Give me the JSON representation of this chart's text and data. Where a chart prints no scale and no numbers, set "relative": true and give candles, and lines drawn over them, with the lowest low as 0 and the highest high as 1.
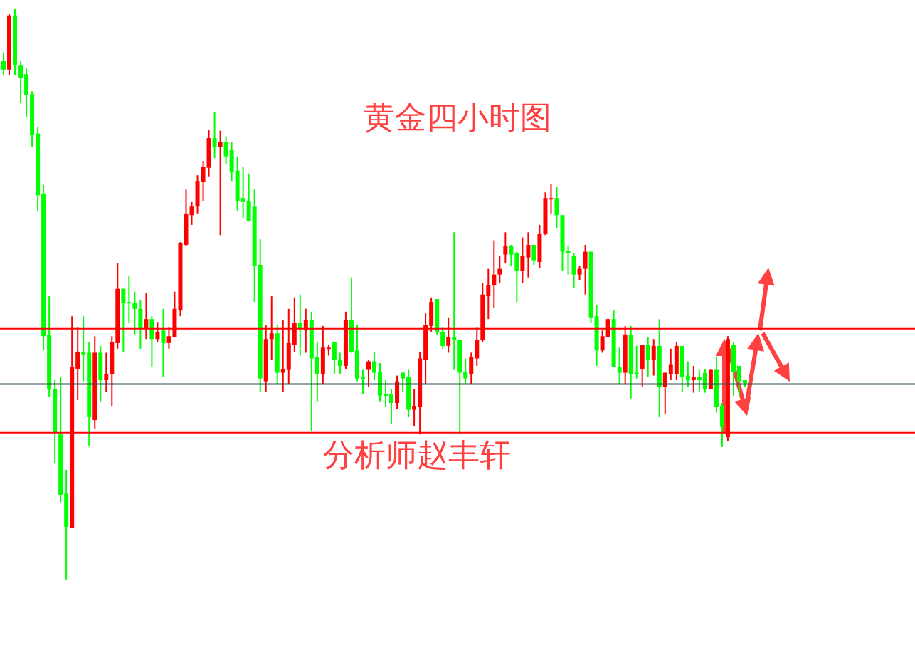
{
  "chart_data": {
    "type": "candlestick",
    "title": "黄金四小时图",
    "annotations": [
      "分析师赵丰轩"
    ],
    "relative": true,
    "categories": [
      null,
      null,
      null,
      null,
      null,
      null,
      null,
      null,
      null,
      null,
      null,
      null,
      null,
      null,
      null,
      null,
      null,
      null,
      null,
      null,
      null,
      null,
      null,
      null,
      null,
      null,
      null,
      null,
      null,
      null,
      null,
      null,
      null,
      null,
      null,
      null,
      null,
      null,
      null,
      null,
      null,
      null,
      null,
      null,
      null,
      null,
      null,
      null,
      null,
      null,
      null,
      null,
      null,
      null,
      null,
      null,
      null,
      null,
      null,
      null,
      null,
      null,
      null,
      null,
      null,
      null,
      null,
      null,
      null,
      null,
      null,
      null,
      null,
      null,
      null,
      null,
      null,
      null,
      null,
      null,
      null,
      null,
      null,
      null,
      null,
      null,
      null,
      null,
      null,
      null,
      null,
      null,
      null,
      null,
      null,
      null,
      null,
      null,
      null,
      null,
      null,
      null,
      null,
      null,
      null,
      null,
      null,
      null,
      null,
      null,
      null,
      null,
      null,
      null,
      null,
      null,
      null,
      null,
      null,
      null,
      null,
      null,
      null,
      null,
      null,
      null,
      null,
      null,
      null,
      null,
      null
    ],
    "colors": [
      "#00ff00",
      "#ff0000",
      "#00ff00",
      "#00ff00",
      "#00ff00",
      "#00ff00",
      "#00ff00",
      "#00ff00",
      "#00ff00",
      "#00ff00",
      "#00ff00",
      "#00ff00",
      "#ff0000",
      "#ff0000",
      "#00ff00",
      "#00ff00",
      "#ff0000",
      "#00ff00",
      "#ff0000",
      "#ff0000",
      "#ff0000",
      "#00ff00",
      "#00ff00",
      "#00ff00",
      "#00ff00",
      "#ff0000",
      "#00ff00",
      "#ff0000",
      "#00ff00",
      "#ff0000",
      "#ff0000",
      "#ff0000",
      "#ff0000",
      "#ff0000",
      "#ff0000",
      "#ff0000",
      "#ff0000",
      "#00ff00",
      "#ff0000",
      "#00ff00",
      "#00ff00",
      "#00ff00",
      "#00ff00",
      "#00ff00",
      "#00ff00",
      "#00ff00",
      "#ff0000",
      "#ff0000",
      "#00ff00",
      "#ff0000",
      "#ff0000",
      "#ff0000",
      "#00ff00",
      "#ff0000",
      "#00ff00",
      "#00ff00",
      "#ff0000",
      "#ff0000",
      "#00ff00",
      "#00ff00",
      "#ff0000",
      "#00ff00",
      "#00ff00",
      "#00ff00",
      "#ff0000",
      "#00ff00",
      "#00ff00",
      "#00ff00",
      "#00ff00",
      "#ff0000",
      "#00ff00",
      "#00ff00",
      "#ff0000",
      "#ff0000",
      "#ff0000",
      "#ff0000",
      "#00ff00",
      "#00ff00",
      "#ff0000",
      "#00ff00",
      "#00ff00",
      "#00ff00",
      "#ff0000",
      "#ff0000",
      "#ff0000",
      "#ff0000",
      "#ff0000",
      "#ff0000",
      "#ff0000",
      "#00ff00",
      "#00ff00",
      "#ff0000",
      "#ff0000",
      "#00ff00",
      "#ff0000",
      "#ff0000",
      "#ff0000",
      "#00ff00",
      "#00ff00",
      "#00ff00",
      "#00ff00",
      "#ff0000",
      "#ff0000",
      "#00ff00",
      "#00ff00",
      "#ff0000",
      "#ff0000",
      "#00ff00",
      "#00ff00",
      "#ff0000",
      "#00ff00",
      "#00ff00",
      "#ff0000",
      "#00ff00",
      "#ff0000",
      "#00ff00",
      "#ff0000",
      "#ff0000",
      "#ff0000",
      "#00ff00",
      "#00ff00",
      "#ff0000",
      "#00ff00",
      "#00ff00",
      "#ff0000",
      "#00ff00",
      "#00ff00",
      "#ff0000",
      "#00ff00",
      "#00ff00",
      "#00ff00"
    ],
    "ohlc": [
      [
        0.908,
        0.923,
        0.883,
        0.893
      ],
      [
        0.893,
        0.99,
        0.883,
        0.988
      ],
      [
        0.988,
        1,
        0.883,
        0.9
      ],
      [
        0.9,
        0.908,
        0.835,
        0.878
      ],
      [
        0.885,
        0.895,
        0.81,
        0.848
      ],
      [
        0.85,
        0.855,
        0.758,
        0.778
      ],
      [
        0.781,
        0.793,
        0.646,
        0.673
      ],
      [
        0.676,
        0.691,
        0.401,
        0.426
      ],
      [
        0.429,
        0.496,
        0.319,
        0.334
      ],
      [
        0.334,
        0.349,
        0.204,
        0.257
      ],
      [
        0.254,
        0.354,
        0.135,
        0.147
      ],
      [
        0.15,
        0.192,
        0,
        0.092
      ],
      [
        0.09,
        0.461,
        0.09,
        0.372
      ],
      [
        0.369,
        0.441,
        0.314,
        0.399
      ],
      [
        0.399,
        0.461,
        0.347,
        0.394
      ],
      [
        0.397,
        0.416,
        0.234,
        0.284
      ],
      [
        0.279,
        0.426,
        0.264,
        0.397
      ],
      [
        0.397,
        0.409,
        0.312,
        0.349
      ],
      [
        0.349,
        0.397,
        0.329,
        0.359
      ],
      [
        0.359,
        0.426,
        0.304,
        0.416
      ],
      [
        0.414,
        0.554,
        0.404,
        0.509
      ],
      [
        0.509,
        0.509,
        0.399,
        0.484
      ],
      [
        0.486,
        0.531,
        0.449,
        0.484
      ],
      [
        0.484,
        0.504,
        0.429,
        0.474
      ],
      [
        0.474,
        0.489,
        0.404,
        0.439
      ],
      [
        0.439,
        0.501,
        0.421,
        0.456
      ],
      [
        0.456,
        0.461,
        0.372,
        0.421
      ],
      [
        0.421,
        0.451,
        0.416,
        0.434
      ],
      [
        0.436,
        0.474,
        0.354,
        0.414
      ],
      [
        0.414,
        0.441,
        0.404,
        0.426
      ],
      [
        0.424,
        0.504,
        0.424,
        0.474
      ],
      [
        0.471,
        0.591,
        0.461,
        0.589
      ],
      [
        0.586,
        0.683,
        0.584,
        0.641
      ],
      [
        0.638,
        0.661,
        0.621,
        0.653
      ],
      [
        0.653,
        0.708,
        0.641,
        0.698
      ],
      [
        0.696,
        0.733,
        0.663,
        0.723
      ],
      [
        0.721,
        0.788,
        0.706,
        0.773
      ],
      [
        0.773,
        0.818,
        0.738,
        0.758
      ],
      [
        0.758,
        0.786,
        0.603,
        0.766
      ],
      [
        0.766,
        0.776,
        0.728,
        0.741
      ],
      [
        0.753,
        0.766,
        0.698,
        0.713
      ],
      [
        0.716,
        0.741,
        0.646,
        0.663
      ],
      [
        0.668,
        0.723,
        0.633,
        0.661
      ],
      [
        0.663,
        0.711,
        0.628,
        0.628
      ],
      [
        0.653,
        0.683,
        0.486,
        0.549
      ],
      [
        0.551,
        0.596,
        0.329,
        0.352
      ],
      [
        0.347,
        0.446,
        0.329,
        0.421
      ],
      [
        0.421,
        0.496,
        0.384,
        0.431
      ],
      [
        0.431,
        0.446,
        0.342,
        0.362
      ],
      [
        0.362,
        0.454,
        0.329,
        0.369
      ],
      [
        0.367,
        0.474,
        0.342,
        0.414
      ],
      [
        0.411,
        0.494,
        0.399,
        0.449
      ],
      [
        0.449,
        0.499,
        0.392,
        0.439
      ],
      [
        0.436,
        0.474,
        0.397,
        0.454
      ],
      [
        0.454,
        0.469,
        0.259,
        0.387
      ],
      [
        0.389,
        0.416,
        0.312,
        0.359
      ],
      [
        0.359,
        0.444,
        0.342,
        0.406
      ],
      [
        0.404,
        0.411,
        0.392,
        0.406
      ],
      [
        0.416,
        0.416,
        0.359,
        0.384
      ],
      [
        0.384,
        0.397,
        0.359,
        0.374
      ],
      [
        0.374,
        0.469,
        0.369,
        0.454
      ],
      [
        0.454,
        0.529,
        0.397,
        0.399
      ],
      [
        0.401,
        0.446,
        0.347,
        0.352
      ],
      [
        0.354,
        0.367,
        0.324,
        0.352
      ],
      [
        0.367,
        0.384,
        0.337,
        0.382
      ],
      [
        0.382,
        0.399,
        0.349,
        0.362
      ],
      [
        0.364,
        0.379,
        0.312,
        0.322
      ],
      [
        0.324,
        0.349,
        0.302,
        0.322
      ],
      [
        0.324,
        0.334,
        0.272,
        0.309
      ],
      [
        0.309,
        0.357,
        0.299,
        0.347
      ],
      [
        0.362,
        0.364,
        0.329,
        0.352
      ],
      [
        0.354,
        0.367,
        0.284,
        0.297
      ],
      [
        0.297,
        0.334,
        0.269,
        0.304
      ],
      [
        0.302,
        0.399,
        0.254,
        0.387
      ],
      [
        0.384,
        0.466,
        0.342,
        0.446
      ],
      [
        0.444,
        0.494,
        0.434,
        0.486
      ],
      [
        0.491,
        0.491,
        0.429,
        0.434
      ],
      [
        0.434,
        0.441,
        0.404,
        0.409
      ],
      [
        0.409,
        0.459,
        0.397,
        0.424
      ],
      [
        0.424,
        0.608,
        0.367,
        0.419
      ],
      [
        0.419,
        0.419,
        0.254,
        0.362
      ],
      [
        0.364,
        0.387,
        0.342,
        0.352
      ],
      [
        0.359,
        0.397,
        0.342,
        0.389
      ],
      [
        0.387,
        0.441,
        0.374,
        0.419
      ],
      [
        0.419,
        0.519,
        0.416,
        0.499
      ],
      [
        0.496,
        0.544,
        0.456,
        0.516
      ],
      [
        0.516,
        0.594,
        0.476,
        0.534
      ],
      [
        0.534,
        0.566,
        0.519,
        0.544
      ],
      [
        0.569,
        0.608,
        0.554,
        0.584
      ],
      [
        0.584,
        0.586,
        0.549,
        0.569
      ],
      [
        0.571,
        0.574,
        0.486,
        0.541
      ],
      [
        0.541,
        0.599,
        0.519,
        0.566
      ],
      [
        0.564,
        0.608,
        0.529,
        0.586
      ],
      [
        0.586,
        0.586,
        0.551,
        0.559
      ],
      [
        0.556,
        0.621,
        0.546,
        0.606
      ],
      [
        0.606,
        0.678,
        0.603,
        0.668
      ],
      [
        0.666,
        0.693,
        0.641,
        0.668
      ],
      [
        0.668,
        0.688,
        0.616,
        0.638
      ],
      [
        0.638,
        0.638,
        0.541,
        0.574
      ],
      [
        0.576,
        0.584,
        0.534,
        0.571
      ],
      [
        0.566,
        0.571,
        0.511,
        0.534
      ],
      [
        0.534,
        0.549,
        0.524,
        0.544
      ],
      [
        0.544,
        0.586,
        0.499,
        0.574
      ],
      [
        0.574,
        0.574,
        0.449,
        0.459
      ],
      [
        0.461,
        0.481,
        0.374,
        0.401
      ],
      [
        0.401,
        0.436,
        0.397,
        0.426
      ],
      [
        0.424,
        0.456,
        0.424,
        0.456
      ],
      [
        0.456,
        0.471,
        0.372,
        0.372
      ],
      [
        0.372,
        0.406,
        0.342,
        0.362
      ],
      [
        0.362,
        0.444,
        0.342,
        0.429
      ],
      [
        0.429,
        0.444,
        0.317,
        0.359
      ],
      [
        0.362,
        0.409,
        0.352,
        0.359
      ],
      [
        0.369,
        0.411,
        0.337,
        0.411
      ],
      [
        0.411,
        0.424,
        0.354,
        0.384
      ],
      [
        0.384,
        0.421,
        0.357,
        0.409
      ],
      [
        0.409,
        0.456,
        0.284,
        0.337
      ],
      [
        0.337,
        0.362,
        0.289,
        0.362
      ],
      [
        0.359,
        0.404,
        0.349,
        0.377
      ],
      [
        0.359,
        0.416,
        0.349,
        0.409
      ],
      [
        0.409,
        0.409,
        0.329,
        0.354
      ],
      [
        0.357,
        0.382,
        0.337,
        0.349
      ],
      [
        0.349,
        0.374,
        0.327,
        0.354
      ],
      [
        0.354,
        0.367,
        0.329,
        0.349
      ],
      [
        0.362,
        0.369,
        0.327,
        0.334
      ],
      [
        0.334,
        0.367,
        0.334,
        0.367
      ],
      [
        0.367,
        0.389,
        0.292,
        0.302
      ],
      [
        0.304,
        0.309,
        0.232,
        0.267
      ],
      [
        0.249,
        0.426,
        0.242,
        0.421
      ],
      [
        0.411,
        0.416,
        0.322,
        0.364
      ],
      [
        0.374,
        0.374,
        0.322,
        0.347
      ],
      [
        0.349,
        0.349,
        0.337,
        0.344
      ]
    ],
    "ref_lines": [
      {
        "axis": "y",
        "value": 0.439,
        "color": "#ff0000"
      },
      {
        "axis": "y",
        "value": 0.342,
        "color": "#2f4f4f"
      },
      {
        "axis": "y",
        "value": 0.257,
        "color": "#ff0000"
      }
    ]
  }
}
